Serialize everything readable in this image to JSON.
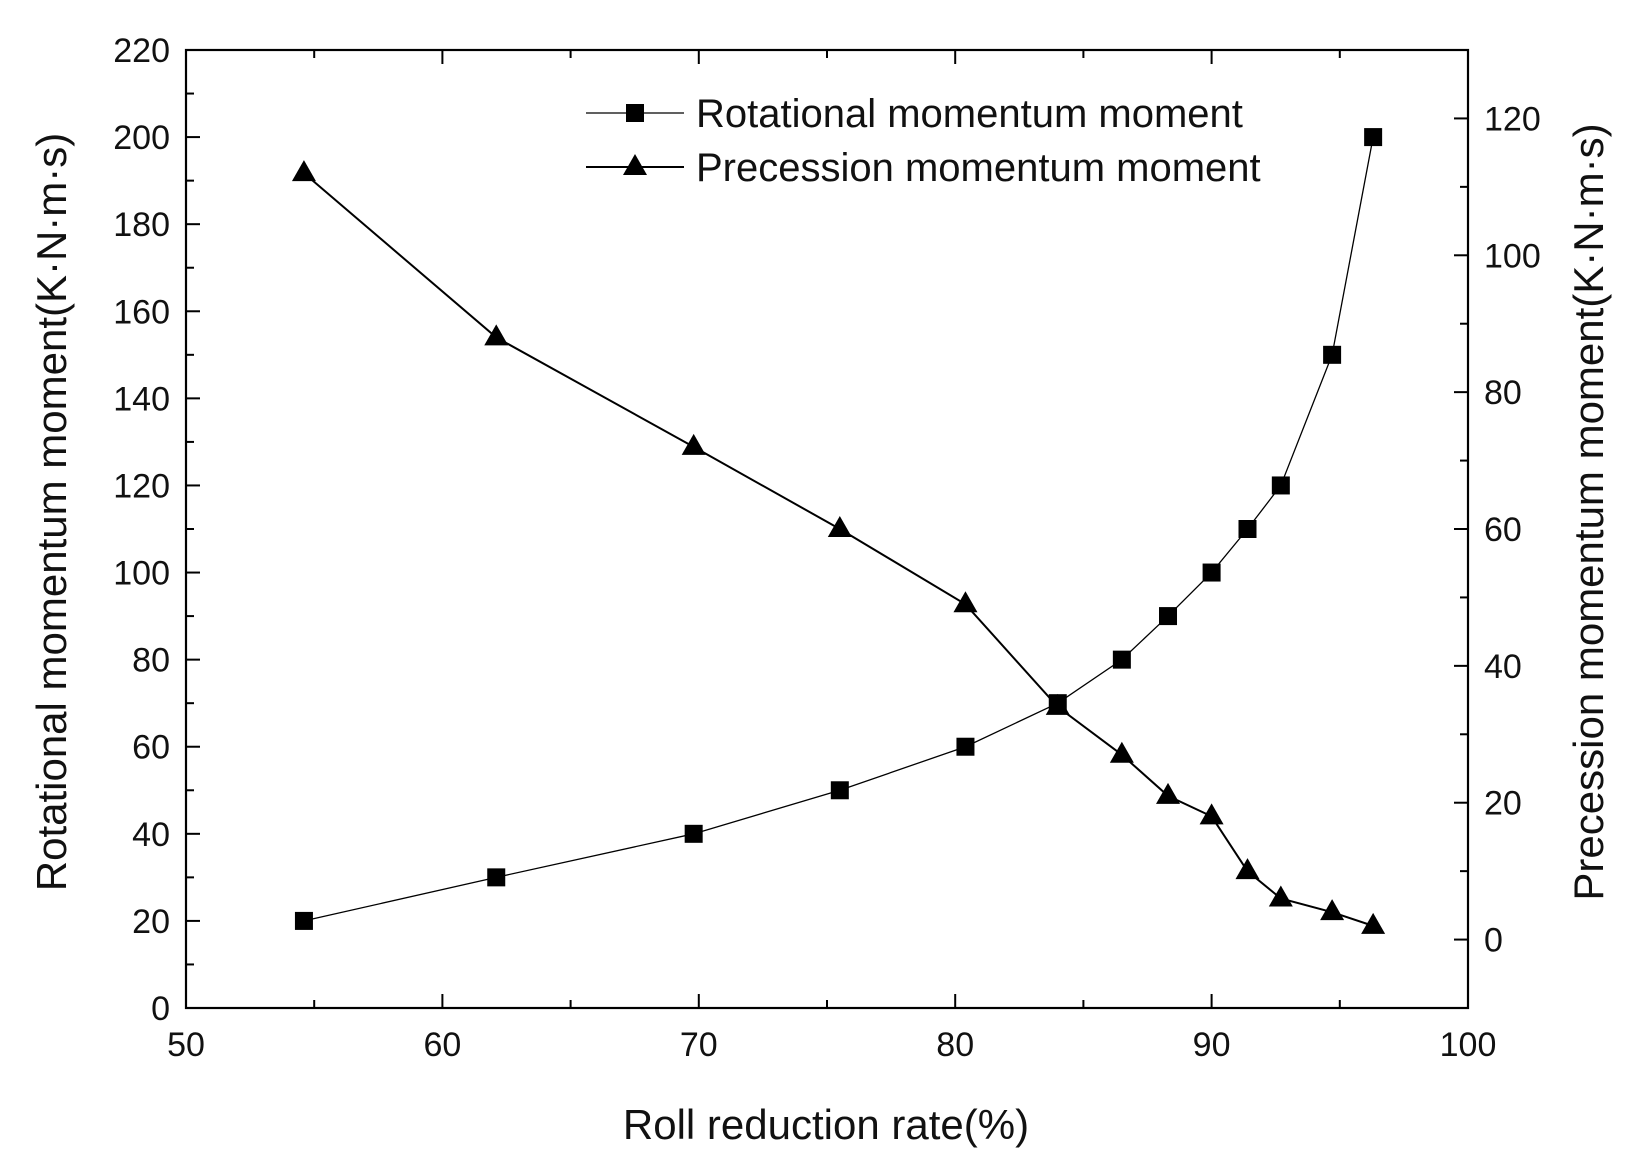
{
  "chart_data": {
    "type": "line",
    "xlabel": "Roll reduction rate(%)",
    "ylabel": "Rotational momentum moment(K·N·m·s)",
    "y2label": "Precession momentum moment(K·N·m·s)",
    "xlim": [
      50,
      100
    ],
    "ylim": [
      0,
      220
    ],
    "y2lim": [
      -10,
      130
    ],
    "x_ticks": [
      50,
      60,
      70,
      80,
      90,
      100
    ],
    "y_ticks": [
      0,
      20,
      40,
      60,
      80,
      100,
      120,
      140,
      160,
      180,
      200,
      220
    ],
    "y2_ticks": [
      0,
      20,
      40,
      60,
      80,
      100,
      120
    ],
    "legend_position": "top-right",
    "grid": false,
    "series": [
      {
        "name": "Rotational momentum moment",
        "axis": "left",
        "marker": "square",
        "x": [
          54.6,
          62.1,
          69.8,
          75.5,
          80.4,
          84.0,
          86.5,
          88.3,
          90.0,
          91.4,
          92.7,
          94.7,
          96.3
        ],
        "y": [
          20,
          30,
          40,
          50,
          60,
          70,
          80,
          90,
          100,
          110,
          120,
          150,
          200
        ]
      },
      {
        "name": "Precession momentum moment",
        "axis": "right",
        "marker": "triangle",
        "x": [
          54.6,
          62.1,
          69.8,
          75.5,
          80.4,
          84.0,
          86.5,
          88.3,
          90.0,
          91.4,
          92.7,
          94.7,
          96.3
        ],
        "y": [
          112,
          88,
          72,
          60,
          49,
          34,
          27,
          21,
          18,
          10,
          6,
          4,
          2
        ]
      }
    ]
  }
}
